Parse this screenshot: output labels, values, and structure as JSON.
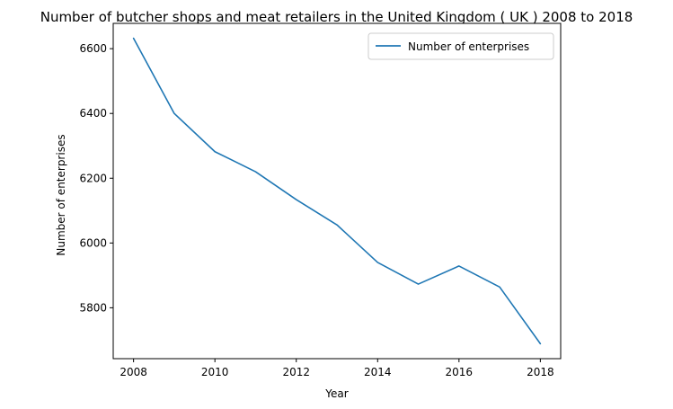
{
  "chart_data": {
    "type": "line",
    "title": "Number of butcher shops and meat retailers in the United Kingdom ( UK ) 2008 to 2018",
    "xlabel": "Year",
    "ylabel": "Number of enterprises",
    "x": [
      2008,
      2009,
      2010,
      2011,
      2012,
      2013,
      2014,
      2015,
      2016,
      2017,
      2018
    ],
    "series": [
      {
        "name": "Number of enterprises",
        "color": "#1f77b4",
        "values": [
          6632,
          6400,
          6282,
          6220,
          6134,
          6056,
          5940,
          5873,
          5929,
          5864,
          5689
        ]
      }
    ],
    "xticks": [
      "2008",
      "2010",
      "2012",
      "2014",
      "2016",
      "2018"
    ],
    "yticks": [
      "5800",
      "6000",
      "6200",
      "6400",
      "6600"
    ],
    "xlim": [
      2007.5,
      2018.5
    ],
    "ylim": [
      5642.85,
      6678.15
    ],
    "grid": false,
    "legend_position": "top-right"
  }
}
